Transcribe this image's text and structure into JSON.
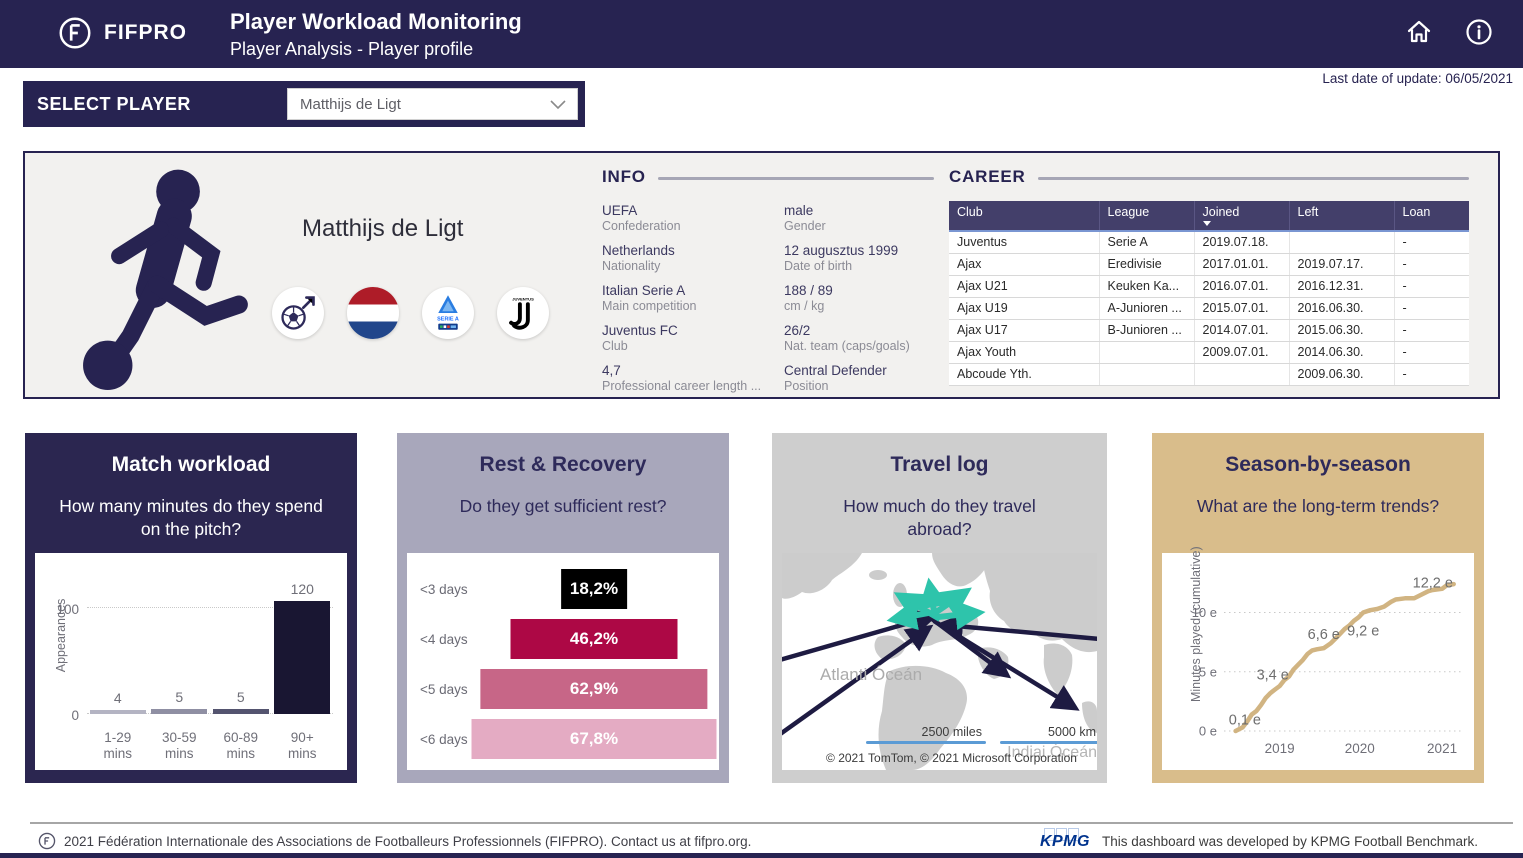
{
  "header": {
    "logo_text": "FIFPRO",
    "app_title": "Player Workload Monitoring",
    "subtitle": "Player Analysis - Player profile"
  },
  "meta": {
    "last_update": "Last date of update: 06/05/2021"
  },
  "select_player": {
    "label": "SELECT PLAYER",
    "value": "Matthijs de Ligt"
  },
  "player": {
    "name": "Matthijs de Ligt",
    "badges": [
      "male-football",
      "netherlands-flag",
      "serie-a",
      "juventus"
    ],
    "info": {
      "title": "INFO",
      "left": [
        {
          "value": "UEFA",
          "label": "Confederation"
        },
        {
          "value": "Netherlands",
          "label": "Nationality"
        },
        {
          "value": "Italian Serie A",
          "label": "Main competition"
        },
        {
          "value": "Juventus FC",
          "label": "Club"
        },
        {
          "value": "4,7",
          "label": "Professional career length ..."
        }
      ],
      "right": [
        {
          "value": "male",
          "label": "Gender"
        },
        {
          "value": "12 augusztus 1999",
          "label": "Date of birth"
        },
        {
          "value": "188 / 89",
          "label": "cm / kg"
        },
        {
          "value": "26/2",
          "label": "Nat. team (caps/goals)"
        },
        {
          "value": "Central Defender",
          "label": "Position"
        }
      ]
    },
    "career": {
      "title": "CAREER",
      "columns": [
        "Club",
        "League",
        "Joined",
        "Left",
        "Loan"
      ],
      "sorted_column": "Joined",
      "rows": [
        [
          "Juventus",
          "Serie A",
          "2019.07.18.",
          "",
          "-"
        ],
        [
          "Ajax",
          "Eredivisie",
          "2017.01.01.",
          "2019.07.17.",
          "-"
        ],
        [
          "Ajax U21",
          "Keuken Ka...",
          "2016.07.01.",
          "2016.12.31.",
          "-"
        ],
        [
          "Ajax U19",
          "A-Junioren ...",
          "2015.07.01.",
          "2016.06.30.",
          "-"
        ],
        [
          "Ajax U17",
          "B-Junioren ...",
          "2014.07.01.",
          "2015.06.30.",
          "-"
        ],
        [
          "Ajax Youth",
          "",
          "2009.07.01.",
          "2014.06.30.",
          "-"
        ],
        [
          "Abcoude Yth.",
          "",
          "",
          "2009.06.30.",
          "-"
        ]
      ]
    }
  },
  "panels": {
    "match": {
      "title": "Match workload",
      "subtitle": "How many minutes do they spend on the pitch?"
    },
    "rest": {
      "title": "Rest & Recovery",
      "subtitle": "Do they get sufficient rest?"
    },
    "travel": {
      "title": "Travel log",
      "subtitle": "How much do they travel abroad?",
      "map": {
        "ocean_label": "Atlanti Óceán",
        "ocean_label2": "Indiai Óceán",
        "scale_miles": "2500 miles",
        "scale_km": "5000 km",
        "attribution": "© 2021 TomTom, © 2021 Microsoft Corporation"
      }
    },
    "season": {
      "title": "Season-by-season",
      "subtitle": "What are the long-term trends?"
    }
  },
  "chart_data": [
    {
      "type": "bar",
      "title": "Match workload",
      "ylabel": "Appearances",
      "categories": [
        "1-29 mins",
        "30-59 mins",
        "60-89 mins",
        "90+ mins"
      ],
      "values": [
        4,
        5,
        5,
        120
      ],
      "yticks": [
        0,
        100
      ],
      "ylim": [
        0,
        125
      ],
      "grid": "dotted",
      "bar_colors": [
        "#b4b4c3",
        "#8f8fa3",
        "#54546f",
        "#191632"
      ]
    },
    {
      "type": "bar",
      "subtype": "funnel",
      "title": "Rest & Recovery",
      "categories": [
        "<3 days",
        "<4 days",
        "<5 days",
        "<6 days"
      ],
      "values": [
        18.2,
        46.2,
        62.9,
        67.8
      ],
      "labels": [
        "18,2%",
        "46,2%",
        "62,9%",
        "67,8%"
      ],
      "colors": [
        "#000000",
        "#ad0845",
        "#c76687",
        "#e4abc3"
      ]
    },
    {
      "type": "line",
      "title": "Season-by-season",
      "ylabel": "Minutes played (cumulative)",
      "color": "#d1b482",
      "ylim": [
        0,
        13
      ],
      "grid": "dotted",
      "yticks": [
        "0 e",
        "5 e",
        "10 e"
      ],
      "ytick_values": [
        0,
        5,
        10
      ],
      "xticks": [
        "2019",
        "2020",
        "2021"
      ],
      "xtick_pos": [
        0.24,
        0.585,
        0.94
      ],
      "points": [
        [
          0.05,
          0
        ],
        [
          0.08,
          0.3
        ],
        [
          0.1,
          0.8
        ],
        [
          0.12,
          1.4
        ],
        [
          0.14,
          1.7
        ],
        [
          0.16,
          2.2
        ],
        [
          0.18,
          2.8
        ],
        [
          0.2,
          3.2
        ],
        [
          0.22,
          3.5
        ],
        [
          0.24,
          3.8
        ],
        [
          0.26,
          4.3
        ],
        [
          0.28,
          4.6
        ],
        [
          0.3,
          5.2
        ],
        [
          0.32,
          5.6
        ],
        [
          0.34,
          6.0
        ],
        [
          0.36,
          6.5
        ],
        [
          0.38,
          6.8
        ],
        [
          0.4,
          6.9
        ],
        [
          0.43,
          7.0
        ],
        [
          0.46,
          7.4
        ],
        [
          0.48,
          7.8
        ],
        [
          0.5,
          8.2
        ],
        [
          0.52,
          8.6
        ],
        [
          0.54,
          8.9
        ],
        [
          0.56,
          9.3
        ],
        [
          0.58,
          9.6
        ],
        [
          0.6,
          10.0
        ],
        [
          0.63,
          10.2
        ],
        [
          0.66,
          10.3
        ],
        [
          0.69,
          10.5
        ],
        [
          0.72,
          10.9
        ],
        [
          0.74,
          11.1
        ],
        [
          0.78,
          11.2
        ],
        [
          0.82,
          11.2
        ],
        [
          0.85,
          11.5
        ],
        [
          0.88,
          11.8
        ],
        [
          0.9,
          11.9
        ],
        [
          0.94,
          12.0
        ],
        [
          0.96,
          12.3
        ],
        [
          0.99,
          12.4
        ]
      ],
      "point_labels": [
        {
          "x": 0.09,
          "y": 0.55,
          "text": "0,1 e"
        },
        {
          "x": 0.21,
          "y": 4.35,
          "text": "3,4 e"
        },
        {
          "x": 0.43,
          "y": 7.75,
          "text": "6,6 e"
        },
        {
          "x": 0.6,
          "y": 8.05,
          "text": "9,2 e"
        },
        {
          "x": 0.9,
          "y": 12.1,
          "text": "12,2 e"
        }
      ]
    }
  ],
  "footer": {
    "fifpro_text": "2021 Fédération Internationale des Associations de Footballeurs Professionnels (FIFPRO). Contact us at fifpro.org.",
    "kpmg_logo": "KPMG",
    "kpmg_text": "This dashboard was developed by KPMG Football Benchmark."
  },
  "colors": {
    "navy": "#272351",
    "rest_bg": "#a8a7bb",
    "travel_bg": "#cecece",
    "season_bg": "#d9bd8b",
    "accent_teal": "#2ec4ab",
    "kpmg_blue": "#00338d",
    "scale_blue": "#5b9bd5"
  }
}
